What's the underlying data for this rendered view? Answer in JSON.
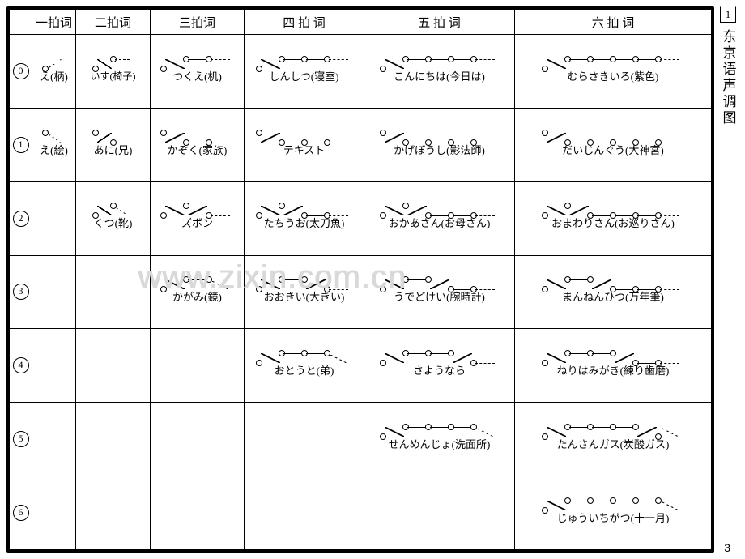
{
  "sidebar": {
    "number": "1",
    "title": "东京语声调图"
  },
  "watermark": "www.zixin.com.cn",
  "page_number": "3",
  "columns": [
    "一拍词",
    "二拍词",
    "三拍词",
    "四 拍 词",
    "五 拍 词",
    "六 拍 词"
  ],
  "row_labels": [
    "⓪",
    "①",
    "②",
    "③",
    "④",
    "⑤",
    "⑥"
  ],
  "cells": {
    "r0": {
      "c1": {
        "pattern": [
          "low",
          "dashup",
          "tail-high"
        ],
        "label": "え(柄)"
      },
      "c2": {
        "pattern": [
          "low",
          "up",
          "high",
          "dashflat",
          "tail-high"
        ],
        "label": "いす(椅子)",
        "label2": "",
        "small": true
      },
      "c3": {
        "pattern": [
          "low",
          "up",
          "high",
          "flat",
          "high",
          "dashflat",
          "tail-high"
        ],
        "label": "つくえ(机)"
      },
      "c4": {
        "pattern": [
          "low",
          "up",
          "high",
          "flat",
          "high",
          "flat",
          "high",
          "dashflat",
          "tail-high"
        ],
        "label": "しんしつ(寝室)"
      },
      "c5": {
        "pattern": [
          "low",
          "up",
          "high",
          "flat",
          "high",
          "flat",
          "high",
          "flat",
          "high",
          "dashflat",
          "tail-high"
        ],
        "label": "こんにちは(今日は)"
      },
      "c6": {
        "pattern": [
          "low",
          "up",
          "high",
          "flat",
          "high",
          "flat",
          "high",
          "flat",
          "high",
          "flat",
          "high",
          "dashflat",
          "tail-high"
        ],
        "label": "むらさきいろ(紫色)"
      }
    },
    "r1": {
      "c1": {
        "pattern": [
          "high",
          "dashdown",
          "tail-low"
        ],
        "label": "え(絵)"
      },
      "c2": {
        "pattern": [
          "high",
          "down",
          "low",
          "dashflat",
          "tail-low"
        ],
        "label": "あに(兄)"
      },
      "c3": {
        "pattern": [
          "high",
          "down",
          "low",
          "flat",
          "low",
          "dashflat",
          "tail-low"
        ],
        "label": "かぞく(家族)"
      },
      "c4": {
        "pattern": [
          "high",
          "down",
          "low",
          "flat",
          "low",
          "flat",
          "low",
          "dashflat",
          "tail-low"
        ],
        "label": "テキスト"
      },
      "c5": {
        "pattern": [
          "high",
          "down",
          "low",
          "flat",
          "low",
          "flat",
          "low",
          "flat",
          "low",
          "dashflat",
          "tail-low"
        ],
        "label": "かげぼうし(影法師)"
      },
      "c6": {
        "pattern": [
          "high",
          "down",
          "low",
          "flat",
          "low",
          "flat",
          "low",
          "flat",
          "low",
          "flat",
          "low",
          "dashflat",
          "tail-low"
        ],
        "label": "だいじんぐう(大神宮)"
      }
    },
    "r2": {
      "c2": {
        "pattern": [
          "low",
          "up",
          "high",
          "dashdown",
          "tail-low"
        ],
        "label": "くつ(靴)"
      },
      "c3": {
        "pattern": [
          "low",
          "up",
          "high",
          "down",
          "low",
          "dashflat",
          "tail-low"
        ],
        "label": "ズボン"
      },
      "c4": {
        "pattern": [
          "low",
          "up",
          "high",
          "down",
          "low",
          "flat",
          "low",
          "dashflat",
          "tail-low"
        ],
        "label": "たちうお(太刀魚)"
      },
      "c5": {
        "pattern": [
          "low",
          "up",
          "high",
          "down",
          "low",
          "flat",
          "low",
          "flat",
          "low",
          "dashflat",
          "tail-low"
        ],
        "label": "おかあさん(お母さん)"
      },
      "c6": {
        "pattern": [
          "low",
          "up",
          "high",
          "down",
          "low",
          "flat",
          "low",
          "flat",
          "low",
          "flat",
          "low",
          "dashflat",
          "tail-low"
        ],
        "label": "おまわりさん(お巡りさん)"
      }
    },
    "r3": {
      "c3": {
        "pattern": [
          "low",
          "up",
          "high",
          "flat",
          "high",
          "dashdown",
          "tail-low"
        ],
        "label": "かがみ(鏡)"
      },
      "c4": {
        "pattern": [
          "low",
          "up",
          "high",
          "flat",
          "high",
          "down",
          "low",
          "dashflat",
          "tail-low"
        ],
        "label": "おおきい(大きい)"
      },
      "c5": {
        "pattern": [
          "low",
          "up",
          "high",
          "flat",
          "high",
          "down",
          "low",
          "flat",
          "low",
          "dashflat",
          "tail-low"
        ],
        "label": "うでどけい(腕時計)"
      },
      "c6": {
        "pattern": [
          "low",
          "up",
          "high",
          "flat",
          "high",
          "down",
          "low",
          "flat",
          "low",
          "flat",
          "low",
          "dashflat",
          "tail-low"
        ],
        "label": "まんねんひつ(万年筆)"
      }
    },
    "r4": {
      "c4": {
        "pattern": [
          "low",
          "up",
          "high",
          "flat",
          "high",
          "flat",
          "high",
          "dashdown",
          "tail-low"
        ],
        "label": "おとうと(弟)"
      },
      "c5": {
        "pattern": [
          "low",
          "up",
          "high",
          "flat",
          "high",
          "flat",
          "high",
          "down",
          "low",
          "dashflat",
          "tail-low"
        ],
        "label": "さようなら"
      },
      "c6": {
        "pattern": [
          "low",
          "up",
          "high",
          "flat",
          "high",
          "flat",
          "high",
          "down",
          "low",
          "flat",
          "low",
          "dashflat",
          "tail-low"
        ],
        "label": "ねりはみがき(練り歯磨)"
      }
    },
    "r5": {
      "c5": {
        "pattern": [
          "low",
          "up",
          "high",
          "flat",
          "high",
          "flat",
          "high",
          "flat",
          "high",
          "dashdown",
          "tail-low"
        ],
        "label": "せんめんじょ(洗面所)"
      },
      "c6": {
        "pattern": [
          "low",
          "up",
          "high",
          "flat",
          "high",
          "flat",
          "high",
          "flat",
          "high",
          "down",
          "low",
          "dashdown",
          "tail-low"
        ],
        "label": "たんさんガス(炭酸ガス)"
      }
    },
    "r6": {
      "c6": {
        "pattern": [
          "low",
          "up",
          "high",
          "flat",
          "high",
          "flat",
          "high",
          "flat",
          "high",
          "flat",
          "high",
          "dashdown",
          "tail-low"
        ],
        "label": "じゅういちがつ(十一月)"
      }
    }
  }
}
